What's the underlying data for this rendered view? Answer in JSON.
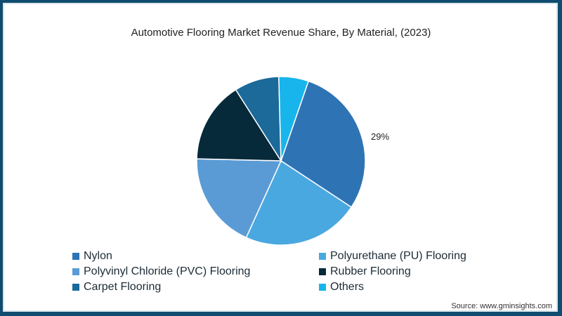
{
  "chart_data": {
    "type": "pie",
    "title": "Automotive Flooring Market Revenue Share, By Material, (2023)",
    "categories": [
      "Nylon",
      "Polyurethane (PU) Flooring",
      "Polyvinyl Chloride (PVC) Flooring",
      "Rubber Flooring",
      "Carpet Flooring",
      "Others"
    ],
    "values": [
      29,
      22.5,
      18.6,
      15.6,
      8.6,
      5.7
    ],
    "colors": [
      "#2e74b5",
      "#4aa8e0",
      "#5b9bd5",
      "#062a3a",
      "#1b6a9a",
      "#17b5ec"
    ],
    "annotations": [
      {
        "category": "Nylon",
        "text": "29%"
      }
    ],
    "legend_position": "bottom"
  },
  "title": "Automotive Flooring Market Revenue Share, By Material, (2023)",
  "label_nylon": "29%",
  "legend": [
    {
      "label": "Nylon",
      "color": "#2e74b5"
    },
    {
      "label": "Polyurethane (PU) Flooring",
      "color": "#4aa8e0"
    },
    {
      "label": "Polyvinyl Chloride (PVC) Flooring",
      "color": "#5b9bd5"
    },
    {
      "label": "Rubber Flooring",
      "color": "#062a3a"
    },
    {
      "label": "Carpet Flooring",
      "color": "#1b6a9a"
    },
    {
      "label": "Others",
      "color": "#17b5ec"
    }
  ],
  "source": "Source: www.gminsights.com"
}
